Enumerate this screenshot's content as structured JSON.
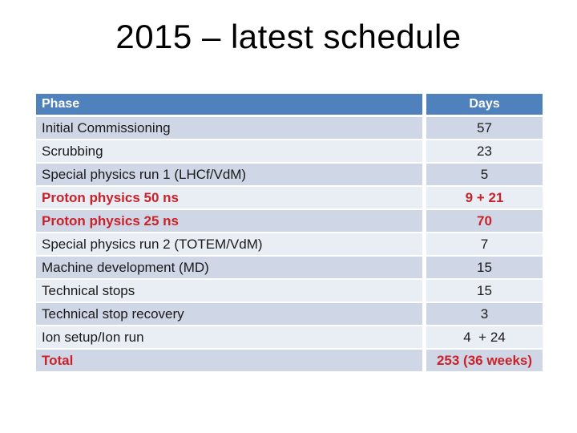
{
  "slide": {
    "title": "2015 – latest schedule"
  },
  "colors": {
    "header_bg": "#4f81bd",
    "header_text": "#ffffff",
    "band_dark": "#cfd6e5",
    "band_light": "#e9edf4",
    "accent_red": "#c9222b"
  },
  "table": {
    "columns": [
      "Phase",
      "Days"
    ],
    "rows": [
      {
        "phase": "Initial Commissioning",
        "days": "57",
        "emphasis": false
      },
      {
        "phase": "Scrubbing",
        "days": "23",
        "emphasis": false
      },
      {
        "phase": "Special physics run 1 (LHCf/VdM)",
        "days": "5",
        "emphasis": false
      },
      {
        "phase": "Proton physics 50 ns",
        "days": "9 + 21",
        "emphasis": true
      },
      {
        "phase": "Proton physics 25 ns",
        "days": "70",
        "emphasis": true
      },
      {
        "phase": "Special physics run 2 (TOTEM/VdM)",
        "days": "7",
        "emphasis": false
      },
      {
        "phase": "Machine development (MD)",
        "days": "15",
        "emphasis": false
      },
      {
        "phase": "Technical stops",
        "days": "15",
        "emphasis": false
      },
      {
        "phase": "Technical stop recovery",
        "days": "3",
        "emphasis": false
      },
      {
        "phase": "Ion setup/Ion run",
        "days": "4  + 24",
        "emphasis": false
      },
      {
        "phase": "Total",
        "days": "253 (36 weeks)",
        "emphasis": true
      }
    ]
  }
}
